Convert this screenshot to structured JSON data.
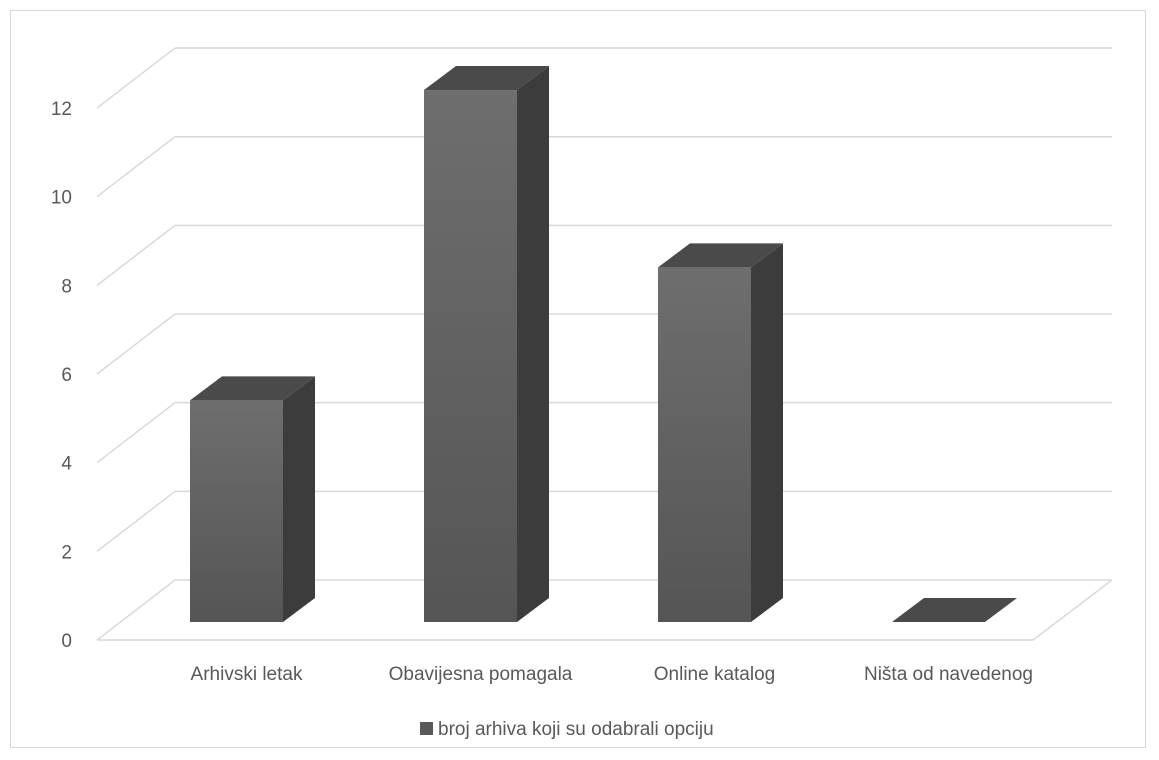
{
  "chart_data": {
    "type": "bar",
    "title": "",
    "xlabel": "",
    "ylabel": "",
    "categories": [
      "Arhivski letak",
      "Obavijesna pomagala",
      "Online katalog",
      "Ništa od navedenog"
    ],
    "series": [
      {
        "name": "broj arhiva koji su odabrali opciju",
        "values": [
          5,
          12,
          8,
          0
        ],
        "color": "#595959"
      }
    ],
    "ylim": [
      0,
      12
    ],
    "yticks": [
      0,
      2,
      4,
      6,
      8,
      10,
      12
    ],
    "grid": true,
    "legend": "bottom",
    "style": "3d-column"
  }
}
